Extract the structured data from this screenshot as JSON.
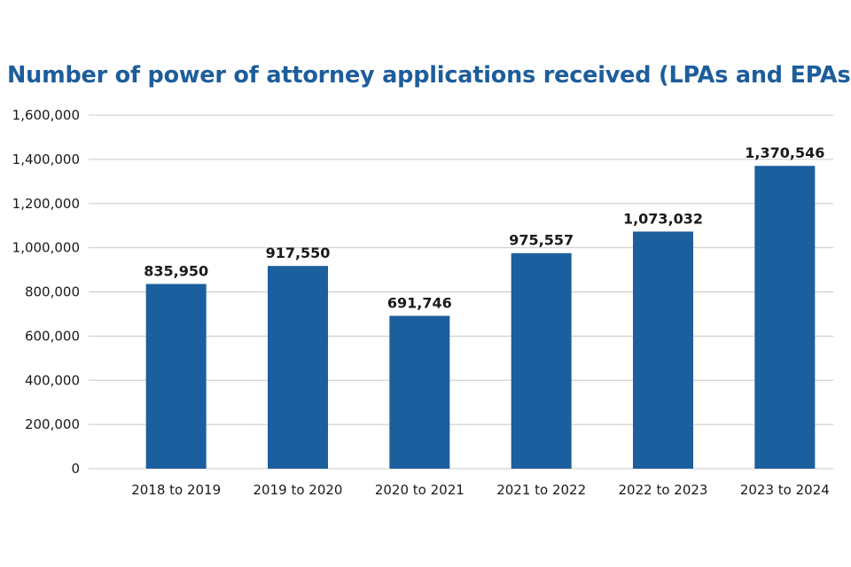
{
  "chart_data": {
    "type": "bar",
    "title": "Number of power of attorney applications received (LPAs and EPAs)",
    "xlabel": "",
    "ylabel": "",
    "categories": [
      "2018 to 2019",
      "2019 to 2020",
      "2020 to 2021",
      "2021 to 2022",
      "2022 to 2023",
      "2023 to 2024"
    ],
    "values": [
      835950,
      917550,
      691746,
      975557,
      1073032,
      1370546
    ],
    "data_labels": [
      "835,950",
      "917,550",
      "691,746",
      "975,557",
      "1,073,032",
      "1,370,546"
    ],
    "ylim": [
      0,
      1600000
    ],
    "yticks": [
      0,
      200000,
      400000,
      600000,
      800000,
      1000000,
      1200000,
      1400000,
      1600000
    ],
    "ytick_labels": [
      "0",
      "200,000",
      "400,000",
      "600,000",
      "800,000",
      "1,000,000",
      "1,200,000",
      "1,400,000",
      "1,600,000"
    ],
    "grid": true,
    "legend": "none",
    "bar_color": "#1b5f9e",
    "grid_color": "#c8c8c8",
    "title_color": "#1d5d9b"
  }
}
